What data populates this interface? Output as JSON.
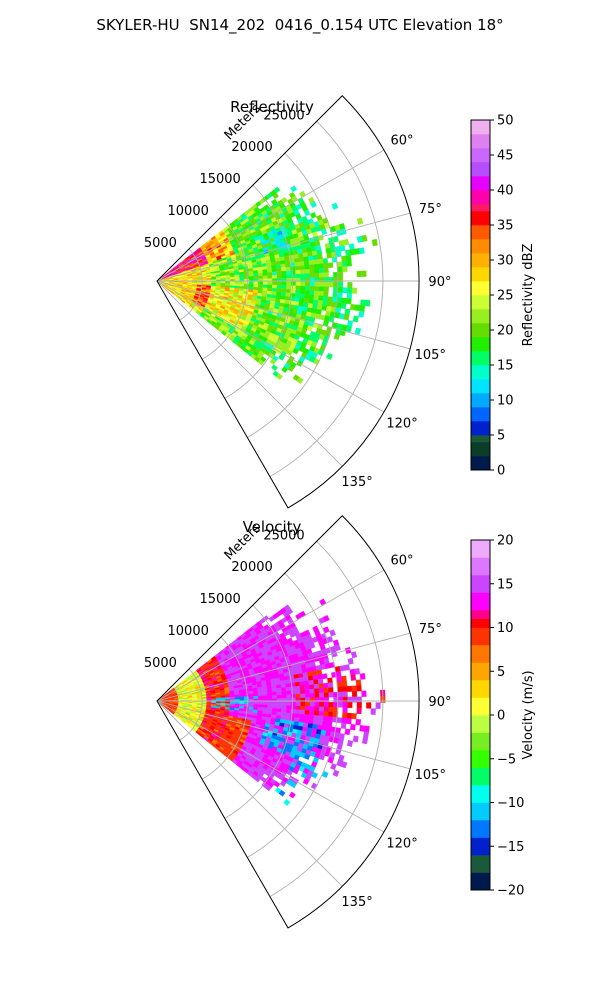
{
  "figure": {
    "title": "SKYLER-HU  SN14_202  0416_0.154 UTC Elevation 18°"
  },
  "chart_data": [
    {
      "type": "heatmap",
      "subtype": "polar-sector",
      "title": "Reflectivity",
      "range_label": "Meters",
      "range_ticks": [
        5000,
        10000,
        15000,
        20000,
        25000
      ],
      "range_tick_labels": [
        "5000",
        "10000",
        "15000",
        "20000",
        "25000"
      ],
      "range_max": 29000,
      "angle_range_deg": [
        45,
        150
      ],
      "angle_ticks_deg": [
        60,
        75,
        90,
        105,
        120,
        135
      ],
      "angle_tick_labels": [
        "60°",
        "75°",
        "90°",
        "105°",
        "120°",
        "135°"
      ],
      "grid": true,
      "data_angle_range_deg": [
        52,
        128
      ],
      "data_range_max_approx": 22000,
      "colorbar": {
        "label": "Reflectivity dBZ",
        "min": 0,
        "max": 50,
        "ticks": [
          0,
          5,
          10,
          15,
          20,
          25,
          30,
          35,
          40,
          45,
          50
        ],
        "tick_labels": [
          "0",
          "5",
          "10",
          "15",
          "20",
          "25",
          "30",
          "35",
          "40",
          "45",
          "50"
        ],
        "colormap": [
          [
            0,
            "#001a4d"
          ],
          [
            2,
            "#0a3d2a"
          ],
          [
            4,
            "#1a5a3a"
          ],
          [
            5,
            "#0022cc"
          ],
          [
            7,
            "#0066ff"
          ],
          [
            9,
            "#00aaff"
          ],
          [
            11,
            "#00e5ff"
          ],
          [
            13,
            "#00ffcc"
          ],
          [
            15,
            "#00ff66"
          ],
          [
            17,
            "#22ee00"
          ],
          [
            19,
            "#66dd00"
          ],
          [
            21,
            "#99ee22"
          ],
          [
            23,
            "#ccff33"
          ],
          [
            25,
            "#ffff33"
          ],
          [
            27,
            "#ffd700"
          ],
          [
            29,
            "#ffb000"
          ],
          [
            31,
            "#ff8c00"
          ],
          [
            33,
            "#ff5a00"
          ],
          [
            35,
            "#ff0000"
          ],
          [
            37,
            "#ff1a66"
          ],
          [
            38,
            "#ff00aa"
          ],
          [
            40,
            "#e600ff"
          ],
          [
            42,
            "#b84dff"
          ],
          [
            44,
            "#cc66ff"
          ],
          [
            46,
            "#e080f0"
          ],
          [
            48,
            "#f0b0f0"
          ],
          [
            50,
            "#ffe0ff"
          ]
        ]
      }
    },
    {
      "type": "heatmap",
      "subtype": "polar-sector",
      "title": "Velocity",
      "range_label": "Meters",
      "range_ticks": [
        5000,
        10000,
        15000,
        20000,
        25000
      ],
      "range_tick_labels": [
        "5000",
        "10000",
        "15000",
        "20000",
        "25000"
      ],
      "range_max": 29000,
      "angle_range_deg": [
        45,
        150
      ],
      "angle_ticks_deg": [
        60,
        75,
        90,
        105,
        120,
        135
      ],
      "angle_tick_labels": [
        "60°",
        "75°",
        "90°",
        "105°",
        "120°",
        "135°"
      ],
      "grid": true,
      "data_angle_range_deg": [
        52,
        128
      ],
      "data_range_max_approx": 22000,
      "colorbar": {
        "label": "Velocity (m/s)",
        "min": -20,
        "max": 20,
        "ticks": [
          -20,
          -15,
          -10,
          -5,
          0,
          5,
          10,
          15,
          20
        ],
        "tick_labels": [
          "−20",
          "−15",
          "−10",
          "−5",
          "0",
          "5",
          "10",
          "15",
          "20"
        ],
        "colormap": [
          [
            -20,
            "#001a4d"
          ],
          [
            -18,
            "#1a5a3a"
          ],
          [
            -16,
            "#0022cc"
          ],
          [
            -14,
            "#0077ff"
          ],
          [
            -12,
            "#00ccff"
          ],
          [
            -10,
            "#00ffee"
          ],
          [
            -8,
            "#00ff66"
          ],
          [
            -6,
            "#33ff00"
          ],
          [
            -4,
            "#77ee22"
          ],
          [
            -2,
            "#bbff44"
          ],
          [
            0,
            "#ffff33"
          ],
          [
            2,
            "#ffd700"
          ],
          [
            4,
            "#ffa500"
          ],
          [
            6,
            "#ff7700"
          ],
          [
            8,
            "#ff3300"
          ],
          [
            10,
            "#ff0000"
          ],
          [
            11,
            "#ff0088"
          ],
          [
            12,
            "#ff00ff"
          ],
          [
            14,
            "#cc44ff"
          ],
          [
            16,
            "#dd77ff"
          ],
          [
            18,
            "#eeaaff"
          ],
          [
            20,
            "#ffddff"
          ]
        ]
      }
    }
  ]
}
